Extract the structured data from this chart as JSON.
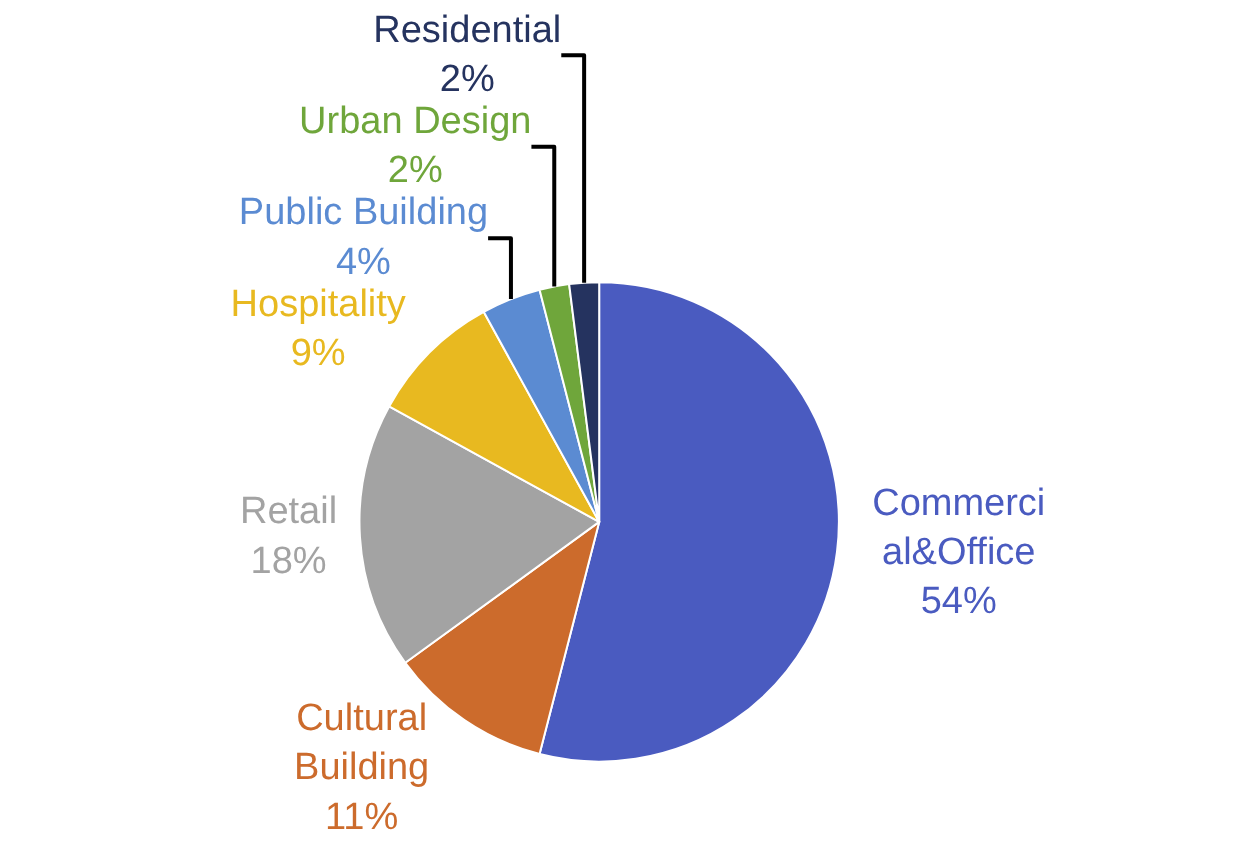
{
  "chart_data": {
    "type": "pie",
    "categories": [
      "Commerci\nal&Office",
      "Cultural\nBuilding",
      "Retail",
      "Hospitality",
      "Public Building",
      "Urban Design",
      "Residential"
    ],
    "values": [
      54,
      11,
      18,
      9,
      4,
      2,
      2
    ],
    "value_labels": [
      "54%",
      "11%",
      "18%",
      "9%",
      "4%",
      "2%",
      "2%"
    ],
    "colors": [
      "#4a5bc0",
      "#cc6b2c",
      "#a3a3a3",
      "#e8b920",
      "#5b8bd2",
      "#6fa63b",
      "#25335f"
    ],
    "legend": false
  }
}
